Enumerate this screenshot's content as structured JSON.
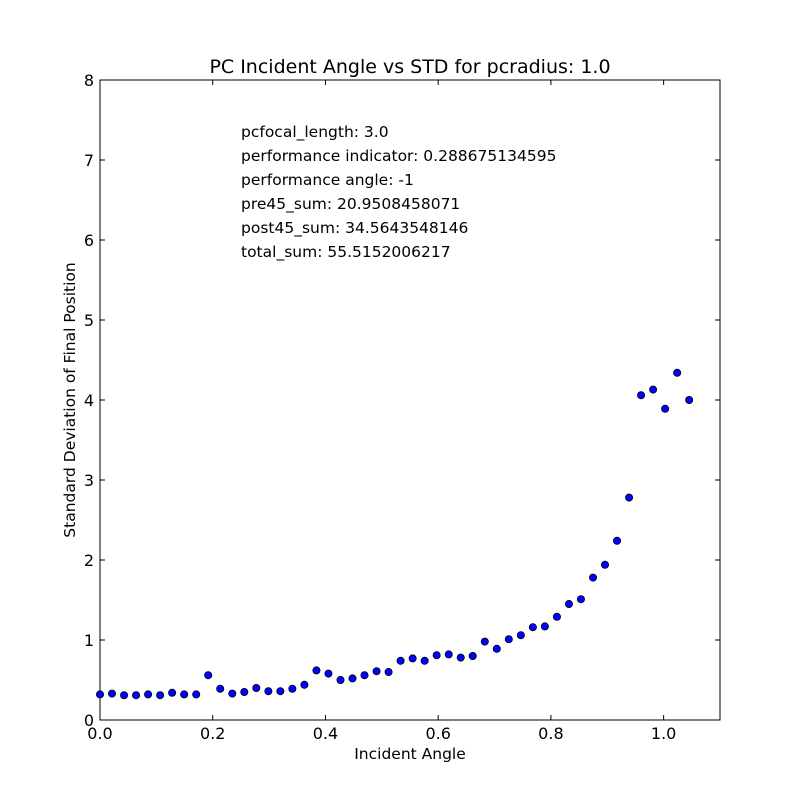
{
  "chart_data": {
    "type": "scatter",
    "title": "PC Incident Angle vs STD for pcradius: 1.0",
    "xlabel": "Incident Angle",
    "ylabel": "Standard Deviation of Final Position",
    "xlim": [
      0.0,
      1.1
    ],
    "ylim": [
      0,
      8
    ],
    "xticks": [
      0.0,
      0.2,
      0.4,
      0.6,
      0.8,
      1.0
    ],
    "xtick_labels": [
      "0.0",
      "0.2",
      "0.4",
      "0.6",
      "0.8",
      "1.0"
    ],
    "yticks": [
      0,
      1,
      2,
      3,
      4,
      5,
      6,
      7,
      8
    ],
    "ytick_labels": [
      "0",
      "1",
      "2",
      "3",
      "4",
      "5",
      "6",
      "7",
      "8"
    ],
    "grid": false,
    "marker_color": "#0000ff",
    "annotations": [
      "pcfocal_length: 3.0",
      "performance indicator: 0.288675134595",
      "performance angle: -1",
      "pre45_sum: 20.9508458071",
      "post45_sum: 34.5643548146",
      "total_sum: 55.5152006217"
    ],
    "x": [
      0.0,
      0.0213,
      0.0427,
      0.064,
      0.0853,
      0.1067,
      0.128,
      0.1493,
      0.1707,
      0.192,
      0.2133,
      0.2347,
      0.256,
      0.2773,
      0.2987,
      0.32,
      0.3413,
      0.3627,
      0.384,
      0.4053,
      0.4267,
      0.448,
      0.4693,
      0.4907,
      0.512,
      0.5333,
      0.5547,
      0.576,
      0.5973,
      0.6187,
      0.64,
      0.6613,
      0.6827,
      0.704,
      0.7253,
      0.7467,
      0.768,
      0.7893,
      0.8107,
      0.832,
      0.8533,
      0.8747,
      0.896,
      0.9173,
      0.9387,
      0.96,
      0.9813,
      1.0027,
      1.024,
      1.0453
    ],
    "y": [
      0.32,
      0.33,
      0.31,
      0.31,
      0.32,
      0.31,
      0.34,
      0.32,
      0.32,
      0.56,
      0.39,
      0.33,
      0.35,
      0.4,
      0.36,
      0.36,
      0.39,
      0.44,
      0.62,
      0.58,
      0.5,
      0.52,
      0.56,
      0.61,
      0.6,
      0.74,
      0.77,
      0.74,
      0.81,
      0.82,
      0.78,
      0.8,
      0.98,
      0.89,
      1.01,
      1.06,
      1.16,
      1.17,
      1.29,
      1.45,
      1.51,
      1.78,
      1.94,
      2.24,
      2.78,
      4.06,
      4.13,
      3.89,
      4.34,
      4.0
    ]
  }
}
